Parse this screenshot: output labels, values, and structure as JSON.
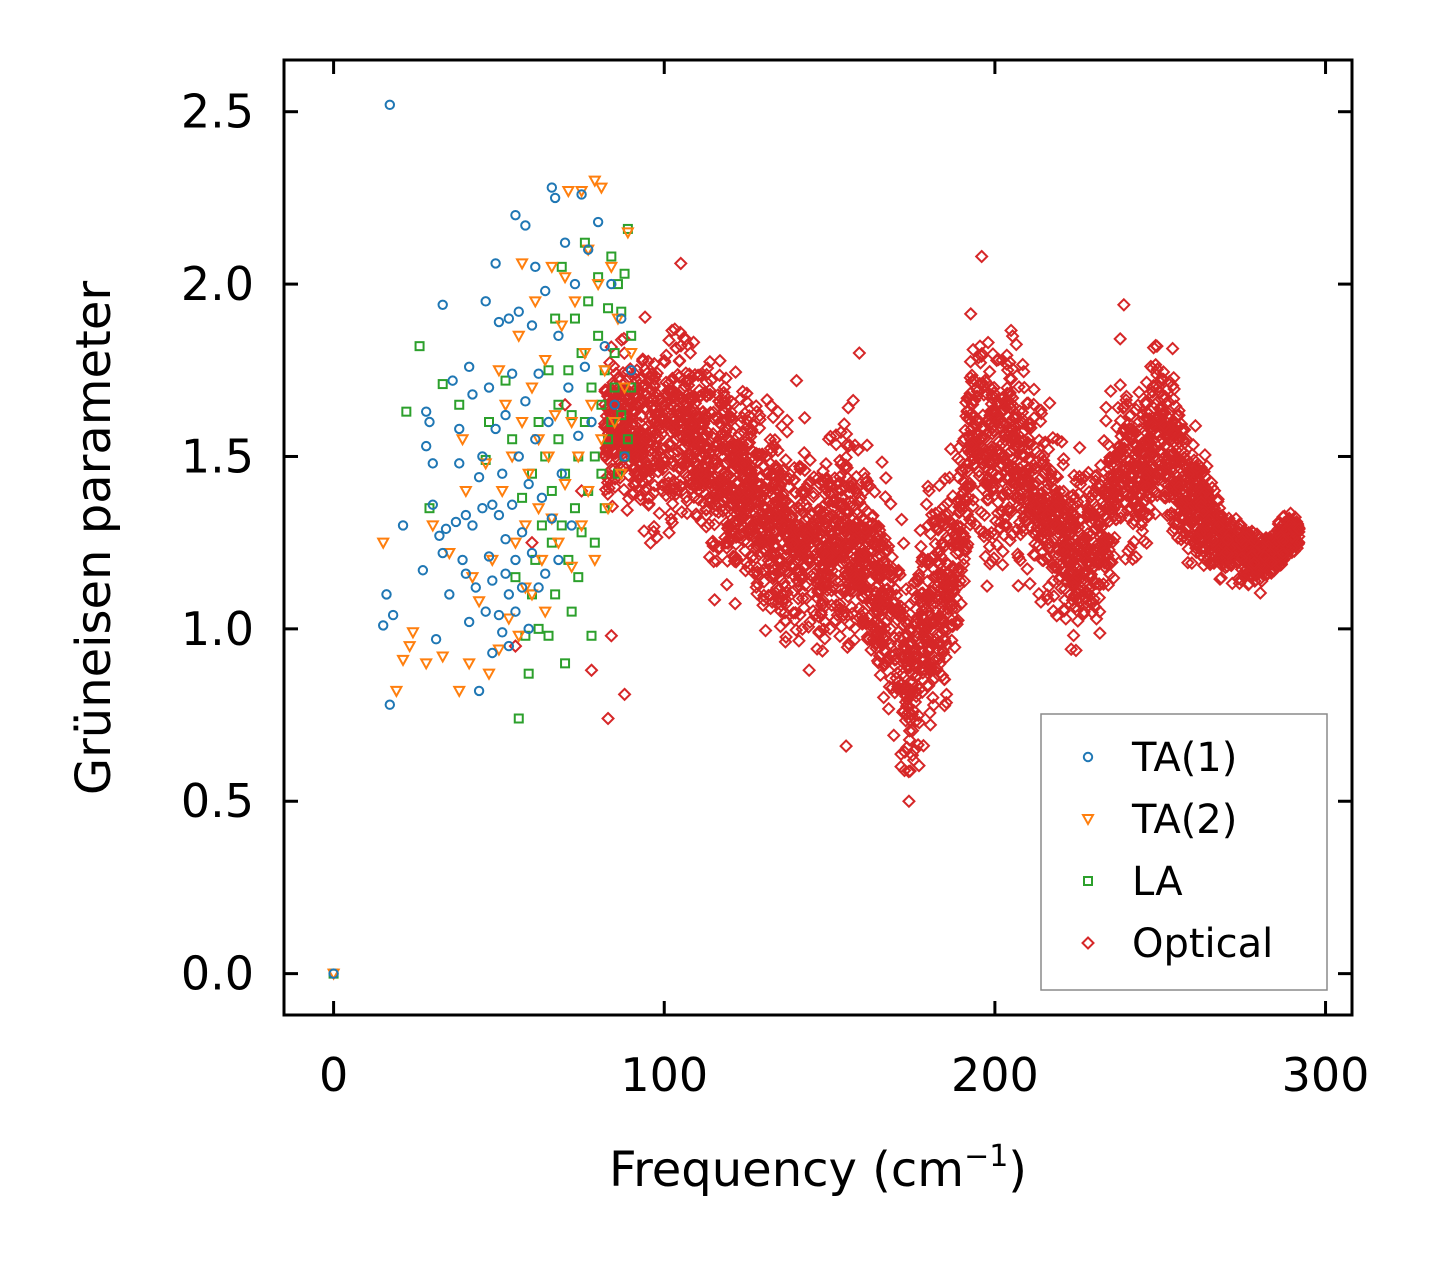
{
  "chart_data": {
    "type": "scatter",
    "title": "",
    "xlabel": "Frequency (cm",
    "xlabel_sup": "−1",
    "xlabel_end": ")",
    "ylabel": "Grüneisen parameter",
    "xlim": [
      -15,
      308
    ],
    "ylim": [
      -0.12,
      2.65
    ],
    "xticks": [
      0,
      100,
      200,
      300
    ],
    "xtick_labels": [
      "0",
      "100",
      "200",
      "300"
    ],
    "yticks": [
      0.0,
      0.5,
      1.0,
      1.5,
      2.0,
      2.5
    ],
    "ytick_labels": [
      "0.0",
      "0.5",
      "1.0",
      "1.5",
      "2.0",
      "2.5"
    ],
    "grid": false,
    "legend_position": "bottom-right",
    "series": [
      {
        "name": "TA(1)",
        "marker": "circle",
        "color": "#1f77b4",
        "points": [
          [
            0,
            0
          ],
          [
            17,
            2.52
          ],
          [
            15,
            1.01
          ],
          [
            16,
            1.1
          ],
          [
            17,
            0.78
          ],
          [
            18,
            1.04
          ],
          [
            21,
            1.3
          ],
          [
            27,
            1.17
          ],
          [
            28,
            1.63
          ],
          [
            28,
            1.53
          ],
          [
            29,
            1.6
          ],
          [
            30,
            1.36
          ],
          [
            30,
            1.48
          ],
          [
            31,
            0.97
          ],
          [
            32,
            1.27
          ],
          [
            33,
            1.94
          ],
          [
            33,
            1.22
          ],
          [
            34,
            1.29
          ],
          [
            35,
            1.1
          ],
          [
            36,
            1.72
          ],
          [
            37,
            1.31
          ],
          [
            38,
            1.58
          ],
          [
            38,
            1.48
          ],
          [
            39,
            1.2
          ],
          [
            40,
            1.33
          ],
          [
            40,
            1.16
          ],
          [
            41,
            1.76
          ],
          [
            41,
            1.02
          ],
          [
            42,
            1.68
          ],
          [
            42,
            1.3
          ],
          [
            43,
            1.12
          ],
          [
            44,
            0.82
          ],
          [
            44,
            1.44
          ],
          [
            45,
            1.35
          ],
          [
            45,
            1.5
          ],
          [
            46,
            1.05
          ],
          [
            46,
            1.95
          ],
          [
            47,
            1.7
          ],
          [
            47,
            1.21
          ],
          [
            48,
            1.14
          ],
          [
            48,
            1.36
          ],
          [
            48,
            0.93
          ],
          [
            49,
            2.06
          ],
          [
            49,
            1.58
          ],
          [
            50,
            1.89
          ],
          [
            50,
            1.33
          ],
          [
            50,
            1.04
          ],
          [
            51,
            1.45
          ],
          [
            51,
            0.99
          ],
          [
            52,
            1.62
          ],
          [
            52,
            1.16
          ],
          [
            52,
            1.26
          ],
          [
            53,
            1.9
          ],
          [
            53,
            1.1
          ],
          [
            53,
            0.95
          ],
          [
            54,
            1.74
          ],
          [
            54,
            1.36
          ],
          [
            55,
            2.2
          ],
          [
            55,
            1.2
          ],
          [
            55,
            1.05
          ],
          [
            56,
            1.5
          ],
          [
            56,
            1.92
          ],
          [
            57,
            1.28
          ],
          [
            57,
            1.12
          ],
          [
            58,
            2.17
          ],
          [
            58,
            1.66
          ],
          [
            59,
            1.42
          ],
          [
            59,
            1.0
          ],
          [
            60,
            1.88
          ],
          [
            60,
            1.22
          ],
          [
            61,
            2.05
          ],
          [
            61,
            1.55
          ],
          [
            62,
            1.12
          ],
          [
            62,
            1.74
          ],
          [
            63,
            1.38
          ],
          [
            64,
            1.98
          ],
          [
            64,
            1.16
          ],
          [
            65,
            1.6
          ],
          [
            66,
            2.28
          ],
          [
            66,
            1.32
          ],
          [
            67,
            2.25
          ],
          [
            68,
            1.85
          ],
          [
            68,
            1.2
          ],
          [
            69,
            1.45
          ],
          [
            70,
            2.12
          ],
          [
            71,
            1.7
          ],
          [
            72,
            1.3
          ],
          [
            73,
            2.0
          ],
          [
            74,
            1.56
          ],
          [
            75,
            2.26
          ],
          [
            76,
            1.76
          ],
          [
            77,
            2.1
          ],
          [
            78,
            1.6
          ],
          [
            80,
            2.18
          ],
          [
            82,
            1.82
          ],
          [
            84,
            2.0
          ],
          [
            85,
            1.65
          ],
          [
            87,
            1.9
          ],
          [
            88,
            1.5
          ],
          [
            90,
            1.75
          ]
        ]
      },
      {
        "name": "TA(2)",
        "marker": "triangle-down",
        "color": "#ff7f0e",
        "points": [
          [
            0,
            0
          ],
          [
            15,
            1.25
          ],
          [
            19,
            0.82
          ],
          [
            21,
            0.91
          ],
          [
            23,
            0.95
          ],
          [
            24,
            0.99
          ],
          [
            28,
            0.9
          ],
          [
            30,
            1.3
          ],
          [
            33,
            0.92
          ],
          [
            35,
            1.22
          ],
          [
            38,
            0.82
          ],
          [
            39,
            1.55
          ],
          [
            40,
            1.4
          ],
          [
            41,
            0.9
          ],
          [
            42,
            1.15
          ],
          [
            44,
            1.08
          ],
          [
            46,
            1.48
          ],
          [
            47,
            0.87
          ],
          [
            48,
            1.2
          ],
          [
            50,
            1.75
          ],
          [
            50,
            0.94
          ],
          [
            51,
            1.4
          ],
          [
            52,
            1.65
          ],
          [
            53,
            1.03
          ],
          [
            54,
            1.5
          ],
          [
            55,
            1.25
          ],
          [
            56,
            1.85
          ],
          [
            56,
            0.98
          ],
          [
            57,
            2.06
          ],
          [
            57,
            1.6
          ],
          [
            58,
            1.3
          ],
          [
            58,
            1.12
          ],
          [
            59,
            1.45
          ],
          [
            60,
            1.7
          ],
          [
            60,
            1.1
          ],
          [
            61,
            1.95
          ],
          [
            62,
            1.35
          ],
          [
            62,
            1.55
          ],
          [
            63,
            1.2
          ],
          [
            64,
            1.78
          ],
          [
            64,
            1.05
          ],
          [
            65,
            1.5
          ],
          [
            66,
            2.05
          ],
          [
            66,
            1.32
          ],
          [
            67,
            1.62
          ],
          [
            68,
            1.25
          ],
          [
            69,
            1.88
          ],
          [
            70,
            2.02
          ],
          [
            70,
            1.42
          ],
          [
            71,
            2.27
          ],
          [
            72,
            1.6
          ],
          [
            72,
            1.18
          ],
          [
            73,
            1.95
          ],
          [
            74,
            1.5
          ],
          [
            75,
            2.27
          ],
          [
            75,
            1.3
          ],
          [
            76,
            1.8
          ],
          [
            77,
            2.1
          ],
          [
            77,
            1.4
          ],
          [
            78,
            1.65
          ],
          [
            79,
            2.3
          ],
          [
            79,
            1.2
          ],
          [
            80,
            2.0
          ],
          [
            81,
            1.55
          ],
          [
            81,
            2.28
          ],
          [
            82,
            1.75
          ],
          [
            83,
            1.35
          ],
          [
            84,
            2.05
          ],
          [
            85,
            1.6
          ],
          [
            86,
            1.9
          ],
          [
            87,
            1.45
          ],
          [
            88,
            1.7
          ],
          [
            89,
            2.15
          ],
          [
            90,
            1.8
          ]
        ]
      },
      {
        "name": "LA",
        "marker": "square",
        "color": "#2ca02c",
        "points": [
          [
            0,
            0
          ],
          [
            22,
            1.63
          ],
          [
            26,
            1.82
          ],
          [
            29,
            1.35
          ],
          [
            33,
            1.71
          ],
          [
            38,
            1.65
          ],
          [
            46,
            1.49
          ],
          [
            47,
            1.6
          ],
          [
            52,
            1.72
          ],
          [
            54,
            1.55
          ],
          [
            55,
            1.15
          ],
          [
            56,
            0.74
          ],
          [
            57,
            1.38
          ],
          [
            58,
            0.98
          ],
          [
            59,
            0.87
          ],
          [
            60,
            1.45
          ],
          [
            60,
            1.1
          ],
          [
            61,
            1.2
          ],
          [
            62,
            1.6
          ],
          [
            62,
            1.0
          ],
          [
            63,
            1.3
          ],
          [
            64,
            1.5
          ],
          [
            65,
            0.98
          ],
          [
            65,
            1.75
          ],
          [
            66,
            1.25
          ],
          [
            66,
            1.4
          ],
          [
            67,
            1.1
          ],
          [
            67,
            1.9
          ],
          [
            68,
            1.55
          ],
          [
            68,
            1.65
          ],
          [
            69,
            1.3
          ],
          [
            69,
            2.05
          ],
          [
            70,
            1.45
          ],
          [
            70,
            0.9
          ],
          [
            71,
            1.2
          ],
          [
            71,
            1.75
          ],
          [
            72,
            1.62
          ],
          [
            72,
            1.05
          ],
          [
            73,
            1.35
          ],
          [
            73,
            1.9
          ],
          [
            74,
            1.5
          ],
          [
            74,
            1.15
          ],
          [
            75,
            1.8
          ],
          [
            75,
            1.28
          ],
          [
            76,
            2.12
          ],
          [
            76,
            1.6
          ],
          [
            77,
            1.4
          ],
          [
            77,
            1.95
          ],
          [
            78,
            1.7
          ],
          [
            78,
            0.98
          ],
          [
            79,
            1.5
          ],
          [
            79,
            1.25
          ],
          [
            80,
            1.85
          ],
          [
            80,
            2.02
          ],
          [
            81,
            1.45
          ],
          [
            81,
            1.65
          ],
          [
            82,
            1.75
          ],
          [
            82,
            1.35
          ],
          [
            83,
            1.93
          ],
          [
            83,
            1.55
          ],
          [
            84,
            2.08
          ],
          [
            84,
            1.6
          ],
          [
            85,
            1.8
          ],
          [
            85,
            1.7
          ],
          [
            86,
            2.0
          ],
          [
            86,
            1.45
          ],
          [
            87,
            1.92
          ],
          [
            87,
            1.62
          ],
          [
            88,
            2.03
          ],
          [
            88,
            1.5
          ],
          [
            89,
            2.16
          ],
          [
            89,
            1.55
          ],
          [
            90,
            1.85
          ],
          [
            90,
            1.7
          ]
        ]
      },
      {
        "name": "Optical",
        "marker": "diamond",
        "color": "#d62728",
        "knots": [
          [
            82,
            1.6
          ],
          [
            95,
            1.55
          ],
          [
            105,
            1.6
          ],
          [
            115,
            1.45
          ],
          [
            125,
            1.4
          ],
          [
            135,
            1.3
          ],
          [
            145,
            1.2
          ],
          [
            155,
            1.3
          ],
          [
            165,
            1.15
          ],
          [
            170,
            1.0
          ],
          [
            174,
            0.85
          ],
          [
            180,
            1.05
          ],
          [
            188,
            1.15
          ],
          [
            193,
            1.6
          ],
          [
            198,
            1.5
          ],
          [
            205,
            1.55
          ],
          [
            212,
            1.4
          ],
          [
            218,
            1.3
          ],
          [
            225,
            1.2
          ],
          [
            232,
            1.25
          ],
          [
            238,
            1.5
          ],
          [
            244,
            1.45
          ],
          [
            250,
            1.6
          ],
          [
            256,
            1.45
          ],
          [
            262,
            1.35
          ],
          [
            270,
            1.25
          ],
          [
            280,
            1.2
          ],
          [
            292,
            1.28
          ]
        ],
        "spread": [
          [
            82,
            0.25
          ],
          [
            100,
            0.35
          ],
          [
            120,
            0.35
          ],
          [
            140,
            0.35
          ],
          [
            160,
            0.35
          ],
          [
            174,
            0.42
          ],
          [
            190,
            0.35
          ],
          [
            200,
            0.42
          ],
          [
            220,
            0.3
          ],
          [
            240,
            0.3
          ],
          [
            255,
            0.3
          ],
          [
            270,
            0.12
          ],
          [
            292,
            0.08
          ]
        ],
        "extra_points": [
          [
            105,
            2.06
          ],
          [
            196,
            2.08
          ],
          [
            239,
            1.94
          ],
          [
            174,
            0.5
          ],
          [
            159,
            1.8
          ],
          [
            140,
            1.72
          ],
          [
            128,
            1.63
          ],
          [
            83,
            0.74
          ],
          [
            88,
            0.81
          ],
          [
            155,
            0.66
          ],
          [
            249,
            1.82
          ],
          [
            292,
            1.29
          ],
          [
            60,
            1.25
          ],
          [
            55,
            0.95
          ],
          [
            75,
            1.4
          ],
          [
            70,
            1.65
          ],
          [
            78,
            0.88
          ],
          [
            84,
            0.98
          ]
        ]
      }
    ]
  }
}
